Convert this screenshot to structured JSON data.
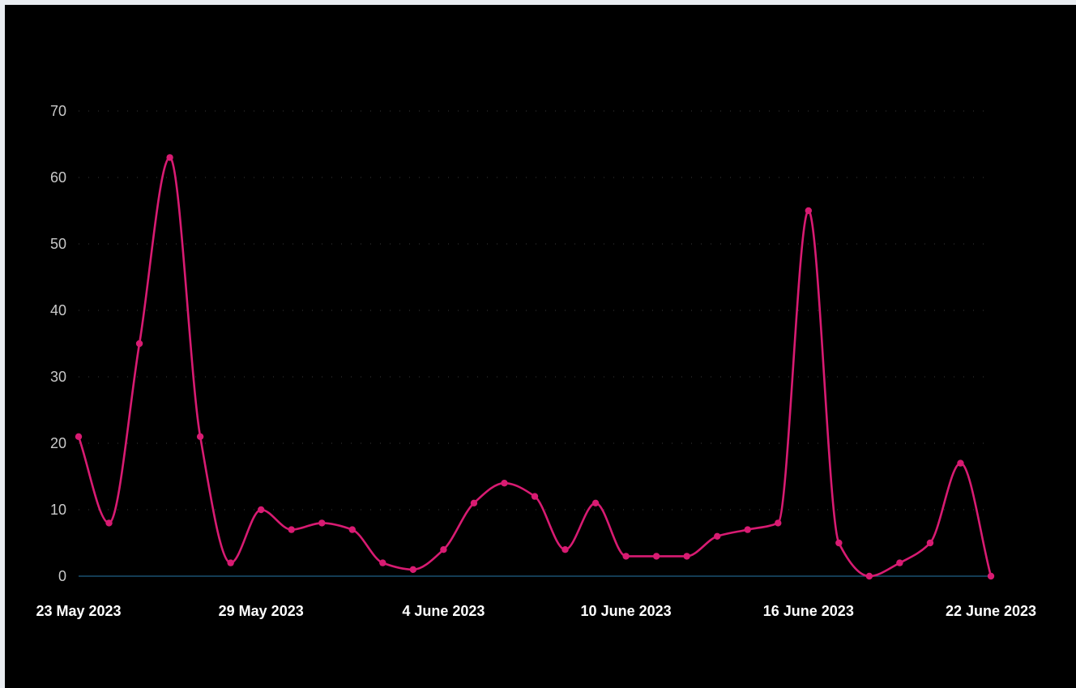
{
  "chart_data": {
    "type": "line",
    "title": "",
    "xlabel": "",
    "ylabel": "",
    "ylim": [
      0,
      70
    ],
    "yticks": [
      0,
      10,
      20,
      30,
      40,
      50,
      60,
      70
    ],
    "y_tick_labels": [
      "0",
      "10",
      "20",
      "30",
      "40",
      "50",
      "60",
      "70"
    ],
    "grid": true,
    "x": [
      "2023-05-23",
      "2023-05-24",
      "2023-05-25",
      "2023-05-26",
      "2023-05-27",
      "2023-05-28",
      "2023-05-29",
      "2023-05-30",
      "2023-05-31",
      "2023-06-01",
      "2023-06-02",
      "2023-06-03",
      "2023-06-04",
      "2023-06-05",
      "2023-06-06",
      "2023-06-07",
      "2023-06-08",
      "2023-06-09",
      "2023-06-10",
      "2023-06-11",
      "2023-06-12",
      "2023-06-13",
      "2023-06-14",
      "2023-06-15",
      "2023-06-16",
      "2023-06-17",
      "2023-06-18",
      "2023-06-19",
      "2023-06-20",
      "2023-06-21",
      "2023-06-22"
    ],
    "x_tick_labels": [
      {
        "date": "2023-05-23",
        "label": "23 May 2023"
      },
      {
        "date": "2023-05-29",
        "label": "29 May 2023"
      },
      {
        "date": "2023-06-04",
        "label": "4 June 2023"
      },
      {
        "date": "2023-06-10",
        "label": "10 June 2023"
      },
      {
        "date": "2023-06-16",
        "label": "16 June 2023"
      },
      {
        "date": "2023-06-22",
        "label": "22 June 2023"
      }
    ],
    "series": [
      {
        "color": "#d81b72",
        "values": [
          21,
          8,
          35,
          63,
          21,
          2,
          10,
          7,
          8,
          7,
          2,
          1,
          4,
          11,
          14,
          12,
          4,
          11,
          3,
          3,
          3,
          6,
          7,
          8,
          55,
          5,
          0,
          2,
          5,
          17,
          0
        ]
      }
    ]
  }
}
